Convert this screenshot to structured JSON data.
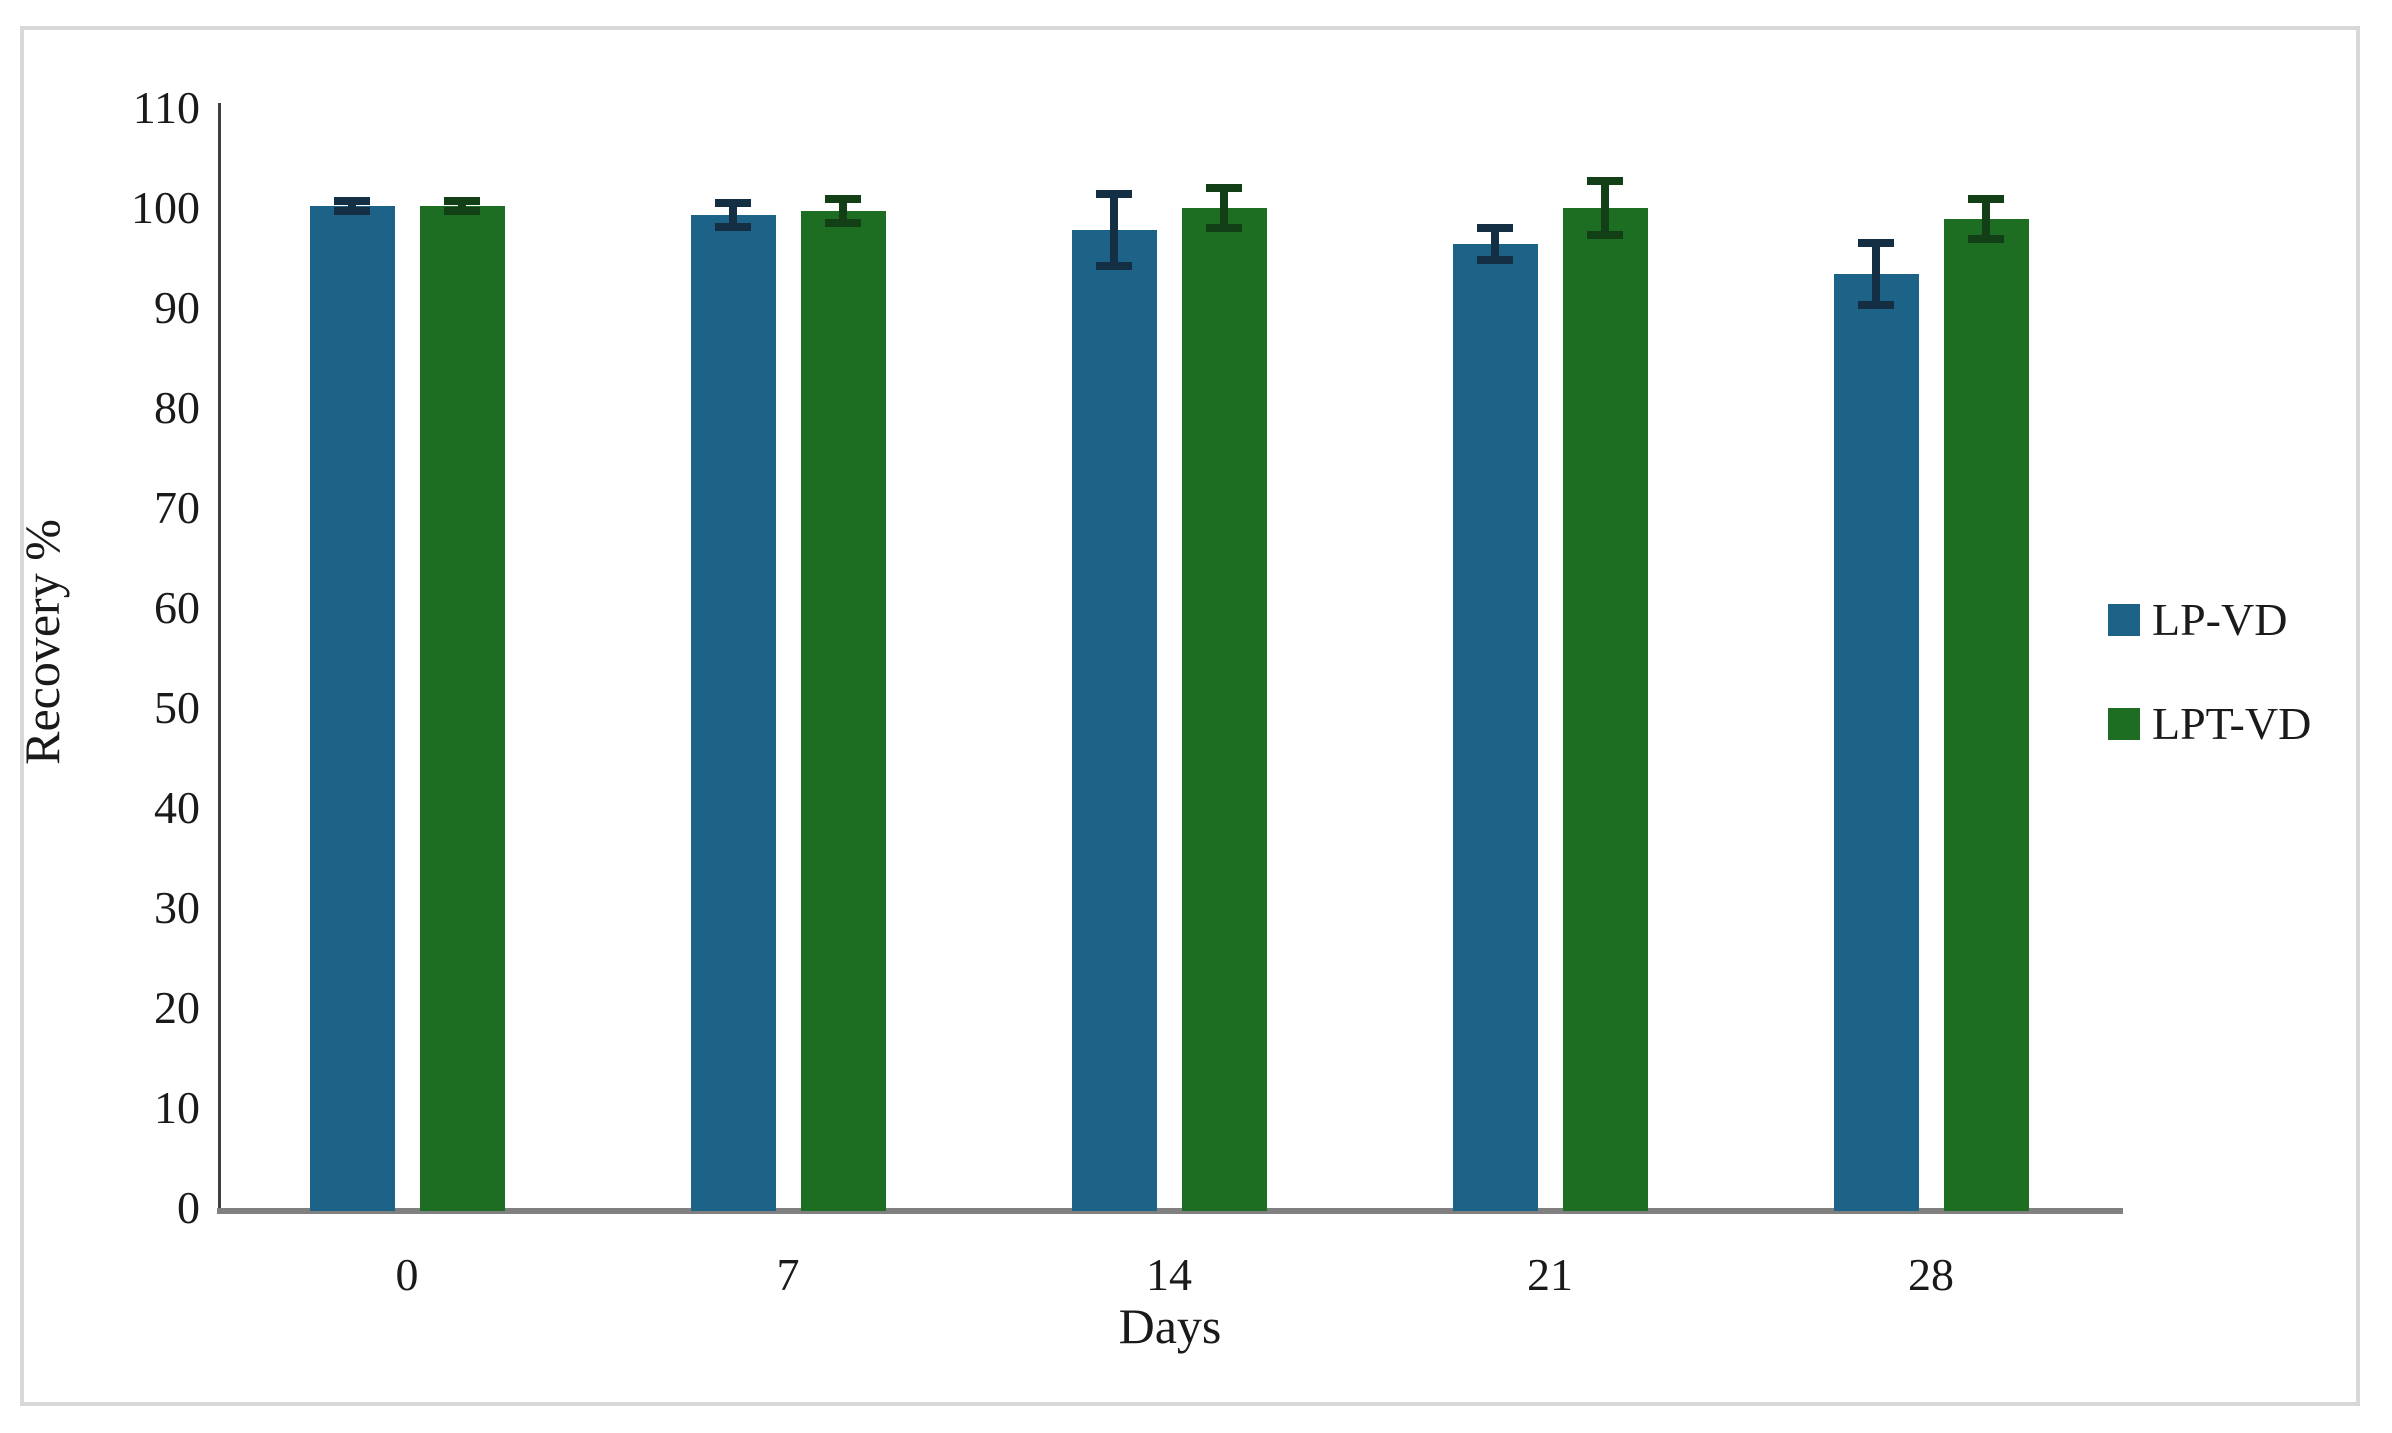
{
  "figure": {
    "background_color": "#ffffff",
    "frame_color": "#d8d8d8",
    "axis_line_color": "#3f3f3f",
    "baseline_color": "#808080",
    "text_color": "#1a1a1a"
  },
  "chart_data": {
    "type": "bar",
    "title": "",
    "xlabel": "Days",
    "ylabel": "Recovery %",
    "categories": [
      "0",
      "7",
      "14",
      "21",
      "28"
    ],
    "yticks": [
      0,
      10,
      20,
      30,
      40,
      50,
      60,
      70,
      80,
      90,
      100,
      110
    ],
    "ylim": [
      0,
      110
    ],
    "grid": false,
    "legend_position": "right",
    "error_bars": true,
    "series": [
      {
        "name": "LP-VD",
        "color": "#1c6387",
        "error_color": "#142f44",
        "values": [
          100.2,
          99.3,
          97.8,
          96.4,
          93.4
        ],
        "errors": [
          0.5,
          1.2,
          3.6,
          1.6,
          3.1
        ]
      },
      {
        "name": "LPT-VD",
        "color": "#1d6e23",
        "error_color": "#133f16",
        "values": [
          100.2,
          99.7,
          100.0,
          100.0,
          98.9
        ],
        "errors": [
          0.5,
          1.2,
          2.0,
          2.7,
          2.0
        ]
      }
    ]
  }
}
